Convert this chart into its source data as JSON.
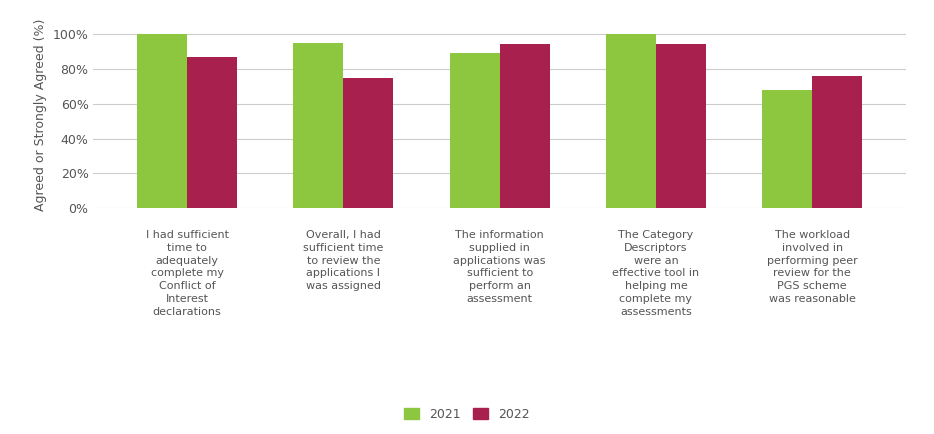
{
  "categories": [
    "I had sufficient\ntime to\nadequately\ncomplete my\nConflict of\nInterest\ndeclarations",
    "Overall, I had\nsufficient time\nto review the\napplications I\nwas assigned",
    "The information\nsupplied in\napplications was\nsufficient to\nperform an\nassessment",
    "The Category\nDescriptors\nwere an\neffective tool in\nhelping me\ncomplete my\nassessments",
    "The workload\ninvolved in\nperforming peer\nreview for the\nPGS scheme\nwas reasonable"
  ],
  "values_2021": [
    100,
    95,
    89,
    100,
    68
  ],
  "values_2022": [
    87,
    75,
    94,
    94,
    76
  ],
  "color_2021": "#8DC63F",
  "color_2022": "#A8204E",
  "ylabel": "Agreed or Strongly Agreed (%)",
  "yticks": [
    0,
    20,
    40,
    60,
    80,
    100
  ],
  "yticklabels": [
    "0%",
    "20%",
    "40%",
    "60%",
    "80%",
    "100%"
  ],
  "legend_labels": [
    "2021",
    "2022"
  ],
  "background_color": "#FFFFFF",
  "bar_width": 0.32,
  "figsize": [
    9.34,
    4.34
  ],
  "dpi": 100
}
